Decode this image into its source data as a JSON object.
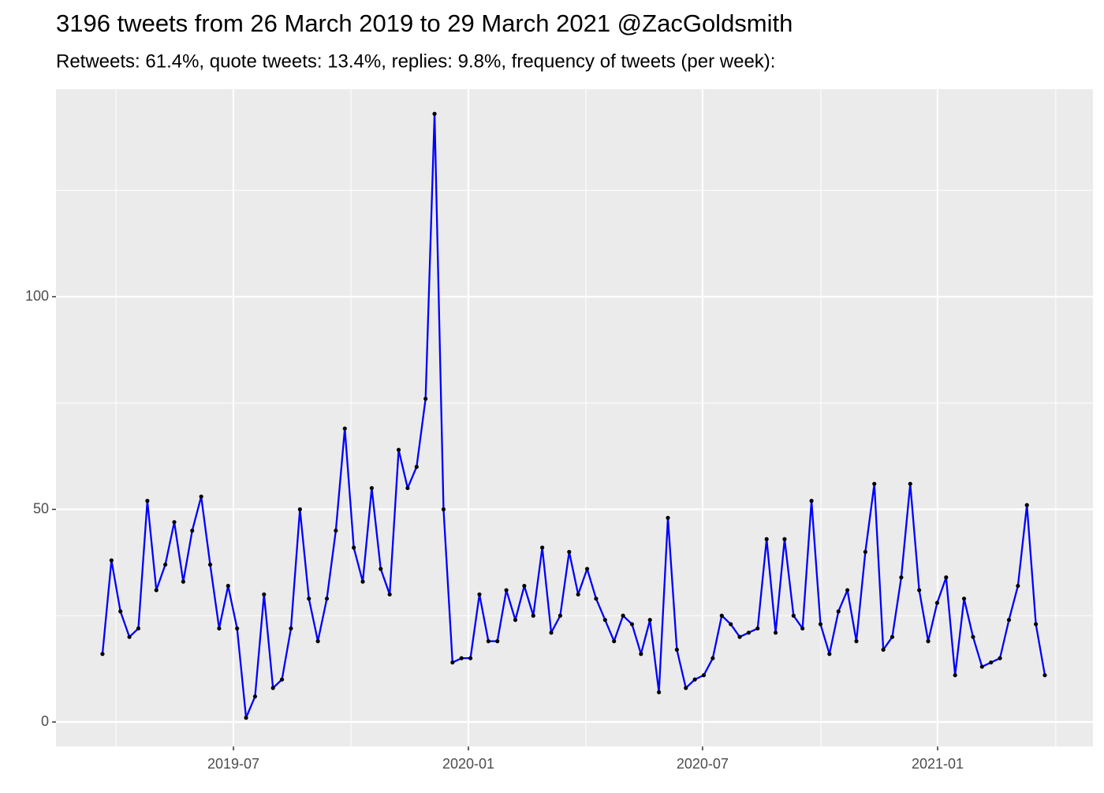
{
  "chart_data": {
    "type": "line",
    "title": "3196 tweets from 26 March 2019 to 29 March 2021 @ZacGoldsmith",
    "subtitle": "Retweets: 61.4%, quote tweets: 13.4%, replies: 9.8%, frequency of tweets (per week):",
    "categories": [
      null,
      null,
      null,
      null,
      null,
      null,
      null,
      null,
      null,
      null,
      null,
      null,
      null,
      null,
      null,
      null,
      null,
      null,
      null,
      null,
      null,
      null,
      null,
      null,
      null,
      null,
      null,
      null,
      null,
      null,
      null,
      null,
      null,
      null,
      null,
      null,
      null,
      null,
      null,
      null,
      null,
      null,
      null,
      null,
      null,
      null,
      null,
      null,
      null,
      null,
      null,
      null,
      null,
      null,
      null,
      null,
      null,
      null,
      null,
      null,
      null,
      null,
      null,
      null,
      null,
      null,
      null,
      null,
      null,
      null,
      null,
      null,
      null,
      null,
      null,
      null,
      null,
      null,
      null,
      null,
      null,
      null,
      null,
      null,
      null,
      null,
      null,
      null,
      null,
      null,
      null,
      null,
      null,
      null,
      null,
      null,
      null,
      null,
      null,
      null,
      null,
      null,
      null,
      null,
      null,
      null
    ],
    "values": [
      16,
      38,
      26,
      20,
      22,
      52,
      31,
      37,
      47,
      33,
      45,
      53,
      37,
      22,
      32,
      22,
      1,
      6,
      30,
      8,
      10,
      22,
      50,
      29,
      19,
      29,
      45,
      69,
      41,
      33,
      55,
      36,
      30,
      64,
      55,
      60,
      76,
      143,
      50,
      14,
      15,
      15,
      30,
      19,
      19,
      31,
      24,
      32,
      25,
      41,
      21,
      25,
      40,
      30,
      36,
      29,
      24,
      19,
      25,
      23,
      16,
      24,
      7,
      48,
      17,
      8,
      10,
      11,
      15,
      25,
      23,
      20,
      21,
      22,
      43,
      21,
      43,
      25,
      22,
      52,
      23,
      16,
      26,
      31,
      19,
      40,
      56,
      17,
      20,
      34,
      56,
      31,
      19,
      28,
      34,
      11,
      29,
      20,
      13,
      14,
      15,
      24,
      32,
      51,
      23,
      11
    ],
    "color": "#0000ff",
    "point_color": "#000000",
    "xlim": [
      -5.18,
      110.36
    ],
    "xticks": [
      {
        "value": 14.59,
        "label": "2019-07"
      },
      {
        "value": 40.77,
        "label": "2020-01"
      },
      {
        "value": 66.86,
        "label": "2020-07"
      },
      {
        "value": 93.05,
        "label": "2021-01"
      }
    ],
    "ylim": [
      -5.75,
      148.8
    ],
    "yticks": [
      0,
      50,
      100
    ],
    "grid": true
  }
}
